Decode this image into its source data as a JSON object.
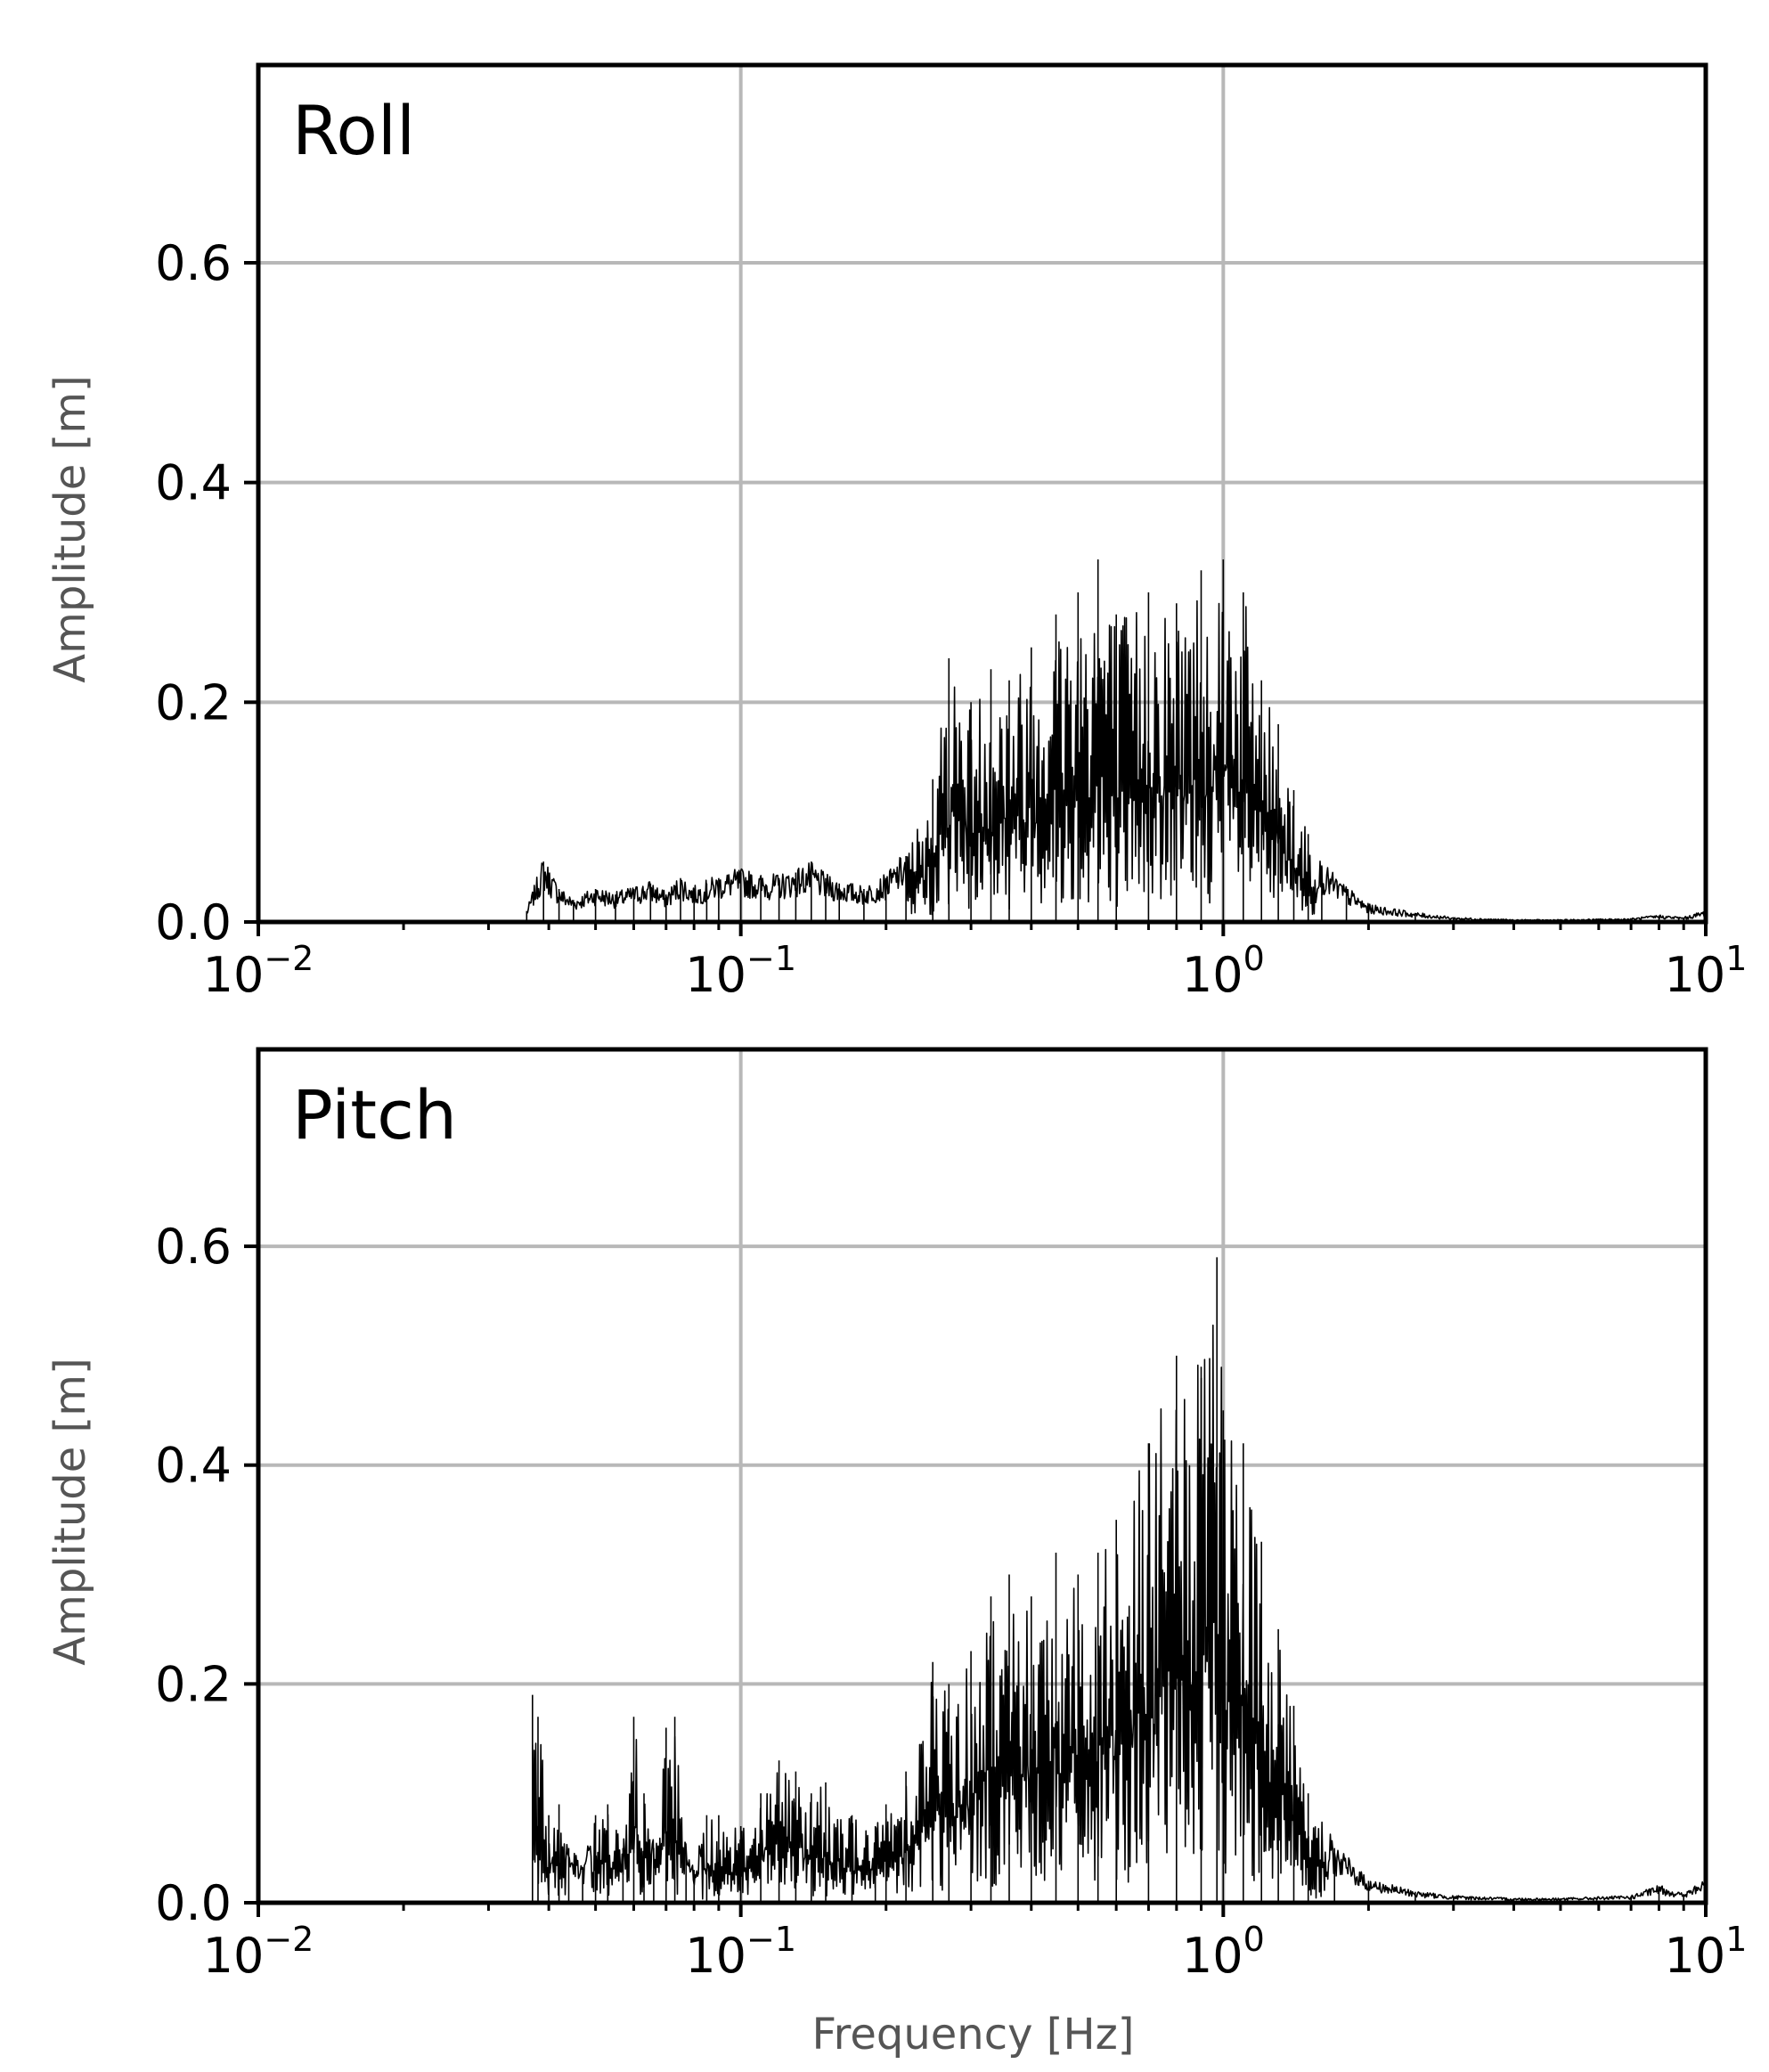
{
  "chart_data": [
    {
      "type": "line",
      "title": "Roll",
      "xlabel": "",
      "ylabel": "Amplitude [m]",
      "x_scale": "log",
      "xlim": [
        0.01,
        10
      ],
      "ylim": [
        0,
        0.78
      ],
      "x_ticks": [
        0.01,
        0.1,
        1,
        10
      ],
      "x_tick_labels": [
        {
          "base": "10",
          "exp": "−2"
        },
        {
          "base": "10",
          "exp": "−1"
        },
        {
          "base": "10",
          "exp": "0"
        },
        {
          "base": "10",
          "exp": "1"
        }
      ],
      "y_ticks": [
        0.0,
        0.2,
        0.4,
        0.6
      ],
      "y_tick_labels": [
        "0.0",
        "0.2",
        "0.4",
        "0.6"
      ],
      "grid": true,
      "series": [
        {
          "color": "#000000",
          "x": [
            0.036,
            0.039,
            0.042,
            0.045,
            0.05,
            0.055,
            0.06,
            0.065,
            0.07,
            0.075,
            0.08,
            0.085,
            0.09,
            0.1,
            0.11,
            0.12,
            0.13,
            0.14,
            0.15,
            0.16,
            0.18,
            0.2,
            0.22,
            0.25,
            0.27,
            0.3,
            0.33,
            0.36,
            0.4,
            0.45,
            0.5,
            0.55,
            0.6,
            0.7,
            0.8,
            0.9,
            1.0,
            1.1,
            1.2,
            1.3,
            1.4,
            1.5,
            1.6,
            1.8,
            2.0,
            2.5,
            3.0,
            4.0,
            5.0,
            7.0,
            8.0,
            9.0,
            10.0
          ],
          "y": [
            0.01,
            0.055,
            0.03,
            0.02,
            0.03,
            0.025,
            0.03,
            0.035,
            0.025,
            0.04,
            0.03,
            0.035,
            0.04,
            0.045,
            0.04,
            0.04,
            0.045,
            0.05,
            0.04,
            0.035,
            0.03,
            0.04,
            0.06,
            0.13,
            0.24,
            0.2,
            0.23,
            0.22,
            0.25,
            0.28,
            0.3,
            0.33,
            0.28,
            0.3,
            0.29,
            0.32,
            0.33,
            0.3,
            0.22,
            0.18,
            0.12,
            0.08,
            0.05,
            0.03,
            0.015,
            0.008,
            0.004,
            0.002,
            0.002,
            0.003,
            0.006,
            0.004,
            0.01
          ]
        }
      ]
    },
    {
      "type": "line",
      "title": "Pitch",
      "xlabel": "Frequency [Hz]",
      "ylabel": "Amplitude [m]",
      "x_scale": "log",
      "xlim": [
        0.01,
        10
      ],
      "ylim": [
        0,
        0.78
      ],
      "x_ticks": [
        0.01,
        0.1,
        1,
        10
      ],
      "x_tick_labels": [
        {
          "base": "10",
          "exp": "−2"
        },
        {
          "base": "10",
          "exp": "−1"
        },
        {
          "base": "10",
          "exp": "0"
        },
        {
          "base": "10",
          "exp": "1"
        }
      ],
      "y_ticks": [
        0.0,
        0.2,
        0.4,
        0.6
      ],
      "y_tick_labels": [
        "0.0",
        "0.2",
        "0.4",
        "0.6"
      ],
      "grid": true,
      "series": [
        {
          "color": "#000000",
          "x": [
            0.037,
            0.038,
            0.04,
            0.042,
            0.044,
            0.047,
            0.05,
            0.053,
            0.057,
            0.06,
            0.063,
            0.066,
            0.07,
            0.073,
            0.077,
            0.08,
            0.085,
            0.09,
            0.1,
            0.11,
            0.12,
            0.13,
            0.14,
            0.15,
            0.17,
            0.19,
            0.2,
            0.22,
            0.25,
            0.27,
            0.3,
            0.33,
            0.36,
            0.4,
            0.45,
            0.5,
            0.55,
            0.6,
            0.7,
            0.8,
            0.9,
            0.97,
            1.0,
            1.1,
            1.2,
            1.3,
            1.4,
            1.5,
            1.7,
            2.0,
            2.5,
            3.0,
            4.0,
            5.0,
            7.0,
            8.0,
            9.0,
            10.0
          ],
          "y": [
            0.19,
            0.17,
            0.08,
            0.09,
            0.05,
            0.03,
            0.08,
            0.09,
            0.05,
            0.17,
            0.1,
            0.05,
            0.16,
            0.17,
            0.05,
            0.03,
            0.08,
            0.08,
            0.07,
            0.1,
            0.13,
            0.12,
            0.1,
            0.11,
            0.08,
            0.07,
            0.09,
            0.12,
            0.22,
            0.2,
            0.23,
            0.28,
            0.3,
            0.28,
            0.32,
            0.3,
            0.32,
            0.35,
            0.42,
            0.5,
            0.49,
            0.59,
            0.45,
            0.42,
            0.33,
            0.25,
            0.18,
            0.1,
            0.05,
            0.02,
            0.01,
            0.006,
            0.004,
            0.004,
            0.006,
            0.015,
            0.008,
            0.02
          ]
        }
      ]
    }
  ]
}
